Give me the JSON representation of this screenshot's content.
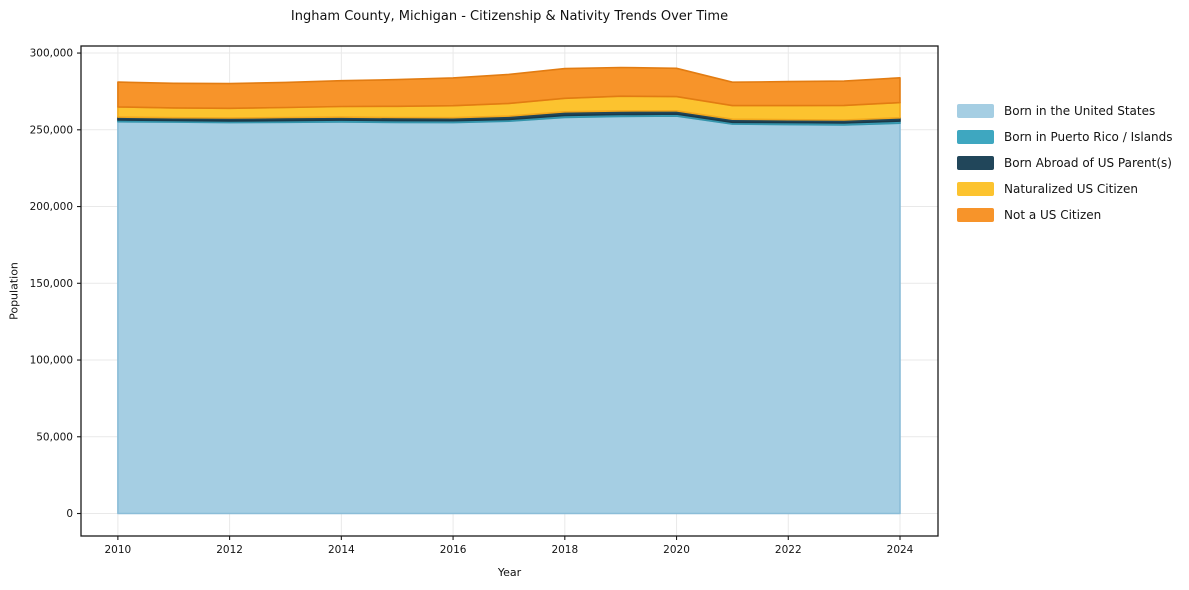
{
  "figure": {
    "title": "Ingham County, Michigan - Citizenship & Nativity Trends Over Time",
    "background_color": "#ffffff",
    "spine_color": "#1a1a1a",
    "grid_color": "#e9e9e9",
    "text_color": "#141414"
  },
  "chart_data": {
    "type": "area",
    "stacked": true,
    "title": "Ingham County, Michigan - Citizenship & Nativity Trends Over Time",
    "xlabel": "Year",
    "ylabel": "Population",
    "grid": true,
    "legend_position": "right-of-plot",
    "x": [
      2010,
      2011,
      2012,
      2013,
      2014,
      2015,
      2016,
      2017,
      2018,
      2019,
      2020,
      2021,
      2022,
      2023,
      2024
    ],
    "series": [
      {
        "name": "Born in the United States",
        "color": "#a5cee3",
        "edge_color": "#8bbdd8",
        "values": [
          255300,
          255000,
          254700,
          254900,
          255100,
          254800,
          254700,
          255600,
          258100,
          258700,
          258900,
          253700,
          253400,
          253100,
          254300
        ]
      },
      {
        "name": "Born in Puerto Rico / Islands",
        "color": "#3ea7c0",
        "edge_color": "#3595ac",
        "values": [
          1100,
          1100,
          1100,
          1100,
          1200,
          1200,
          1200,
          1200,
          1300,
          1300,
          1300,
          1200,
          1300,
          1300,
          1400
        ]
      },
      {
        "name": "Born Abroad of US Parent(s)",
        "color": "#21465a",
        "edge_color": "#1a3948",
        "values": [
          1900,
          1800,
          1900,
          2000,
          2000,
          2000,
          2000,
          2100,
          2300,
          2300,
          2200,
          2000,
          1900,
          2000,
          2100
        ]
      },
      {
        "name": "Naturalized US Citizen",
        "color": "#fcc32f",
        "edge_color": "#f2a81d",
        "values": [
          6600,
          6400,
          6300,
          6500,
          6900,
          7300,
          7800,
          8300,
          8800,
          9600,
          9200,
          8900,
          9200,
          9500,
          9900
        ]
      },
      {
        "name": "Not a US Citizen",
        "color": "#f7942a",
        "edge_color": "#e27c12",
        "values": [
          16200,
          16000,
          16100,
          16400,
          16800,
          17400,
          18100,
          18900,
          19400,
          18700,
          18500,
          15200,
          15600,
          15800,
          16200
        ]
      }
    ],
    "xlim": [
      2009.34,
      2024.68
    ],
    "ylim": [
      -14650,
      304600
    ],
    "xticks": [
      2010,
      2012,
      2014,
      2016,
      2018,
      2020,
      2022,
      2024
    ],
    "xtick_labels": [
      "2010",
      "2012",
      "2014",
      "2016",
      "2018",
      "2020",
      "2022",
      "2024"
    ],
    "yticks": [
      0,
      50000,
      100000,
      150000,
      200000,
      250000,
      300000
    ],
    "ytick_labels": [
      "0",
      "50,000",
      "100,000",
      "150,000",
      "200,000",
      "250,000",
      "300,000"
    ]
  }
}
